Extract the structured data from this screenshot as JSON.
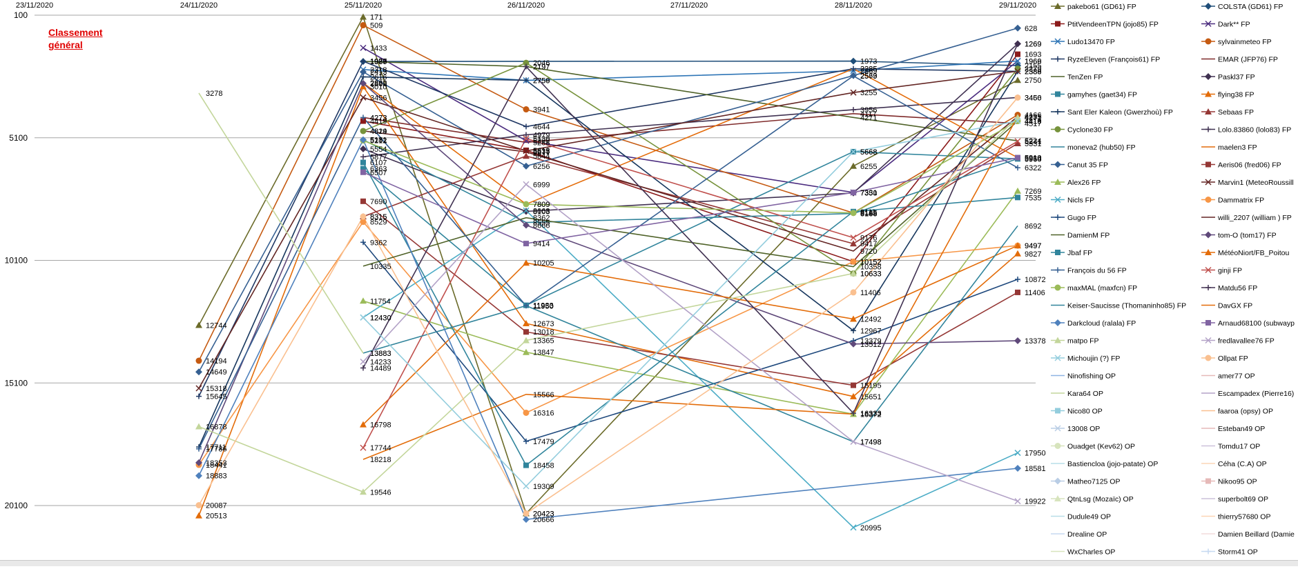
{
  "chart_data": {
    "type": "line",
    "title": "Classement général",
    "x": [
      "23/11/2020",
      "24/11/2020",
      "25/11/2020",
      "26/11/2020",
      "27/11/2020",
      "28/11/2020",
      "29/11/2020"
    ],
    "y_ticks": [
      100,
      5100,
      10100,
      15100,
      20100
    ],
    "ylim": [
      100,
      21000
    ],
    "y_reversed": true,
    "grid": true,
    "legend_position": "right",
    "series": [
      {
        "name": "pakebo61 (GD61) FP",
        "color": "#6b6b2a",
        "marker": "triangle",
        "values": [
          null,
          12744,
          171,
          20423,
          null,
          6255,
          2750
        ]
      },
      {
        "name": "COLSTA (GD61) FP",
        "color": "#1f4e79",
        "marker": "diamond",
        "values": [
          null,
          null,
          1989,
          null,
          null,
          1973,
          2155
        ]
      },
      {
        "name": "PtitVendeenTPN (jojo85) FP",
        "color": "#8b1a1a",
        "marker": "square",
        "values": [
          null,
          null,
          4419,
          5612,
          null,
          10152,
          1693
        ]
      },
      {
        "name": "Dark** FP",
        "color": "#4b2c7f",
        "marker": "x",
        "values": [
          null,
          null,
          1433,
          5222,
          null,
          7331,
          1966
        ]
      },
      {
        "name": "Ludo13470 FP",
        "color": "#2e75b6",
        "marker": "x",
        "values": [
          null,
          null,
          2318,
          2759,
          null,
          2369,
          1969
        ]
      },
      {
        "name": "sylvainmeteo FP",
        "color": "#c55a11",
        "marker": "circle",
        "values": [
          null,
          14194,
          509,
          3941,
          null,
          8165,
          4166
        ]
      },
      {
        "name": "RyzeEleven (François61) FP",
        "color": "#203864",
        "marker": "plus",
        "values": [
          null,
          15645,
          1977,
          4644,
          null,
          2285,
          2389
        ]
      },
      {
        "name": "EMAR (JFP76) FP",
        "color": "#7f2a2a",
        "marker": "none",
        "values": [
          null,
          null,
          4273,
          5288,
          null,
          4117,
          4517
        ]
      },
      {
        "name": "TenZen FP",
        "color": "#4f6228",
        "marker": "none",
        "values": [
          null,
          null,
          1986,
          2197,
          null,
          4271,
          5224
        ]
      },
      {
        "name": "Paskl37 FP",
        "color": "#403151",
        "marker": "diamond",
        "values": [
          null,
          null,
          5554,
          8103,
          null,
          7350,
          1269
        ]
      },
      {
        "name": "gamyhes (gaet34) FP",
        "color": "#31859c",
        "marker": "square",
        "values": [
          null,
          null,
          6363,
          11933,
          null,
          5668,
          5960
        ]
      },
      {
        "name": "flying38 FP",
        "color": "#e36c09",
        "marker": "triangle",
        "values": [
          null,
          20513,
          3010,
          12673,
          null,
          15651,
          9827
        ]
      },
      {
        "name": "Sant Eler Kaleon (Gwerzhoù) FP",
        "color": "#17375e",
        "marker": "plus",
        "values": [
          null,
          17711,
          2616,
          2756,
          null,
          12967,
          2388
        ]
      },
      {
        "name": "Sebaas FP",
        "color": "#953735",
        "marker": "triangle",
        "values": [
          null,
          null,
          8315,
          5844,
          null,
          9417,
          5331
        ]
      },
      {
        "name": "Cyclone30 FP",
        "color": "#77933c",
        "marker": "circle",
        "values": [
          null,
          null,
          4824,
          2046,
          null,
          10633,
          2279
        ]
      },
      {
        "name": "Lolo.83860 (lolo83) FP",
        "color": "#3f3151",
        "marker": "plus",
        "values": [
          null,
          null,
          5877,
          4979,
          null,
          3956,
          3456
        ]
      },
      {
        "name": "moneva2 (hub50) FP",
        "color": "#31849b",
        "marker": "none",
        "values": [
          null,
          null,
          5181,
          8555,
          null,
          8188,
          5954
        ]
      },
      {
        "name": "maelen3 FP",
        "color": "#e46c0a",
        "marker": "none",
        "values": [
          null,
          null,
          2862,
          7809,
          null,
          2285,
          5910
        ]
      },
      {
        "name": "Canut 35 FP",
        "color": "#366092",
        "marker": "diamond",
        "values": [
          null,
          14649,
          2413,
          6256,
          null,
          2563,
          628
        ]
      },
      {
        "name": "Aeris06 (fred06) FP",
        "color": "#953735",
        "marker": "square",
        "values": [
          null,
          null,
          7690,
          13018,
          null,
          15195,
          11406
        ]
      },
      {
        "name": "Alex26 FP",
        "color": "#9bbb59",
        "marker": "triangle",
        "values": [
          null,
          null,
          11754,
          13847,
          null,
          16372,
          7269
        ]
      },
      {
        "name": "Marvin1 (MeteoRoussillon) FP",
        "color": "#632523",
        "marker": "x",
        "values": [
          null,
          15318,
          3456,
          5635,
          null,
          3255,
          2386
        ]
      },
      {
        "name": "Nicls FP",
        "color": "#4bacc6",
        "marker": "x",
        "values": [
          null,
          null,
          12430,
          8068,
          null,
          20995,
          17950
        ]
      },
      {
        "name": "Dammatrix FP",
        "color": "#f79646",
        "marker": "circle",
        "values": [
          null,
          18441,
          8529,
          16316,
          null,
          10152,
          9497
        ]
      },
      {
        "name": "Gugo FP",
        "color": "#1f497d",
        "marker": "plus",
        "values": [
          null,
          null,
          9362,
          17479,
          null,
          13379,
          10872
        ]
      },
      {
        "name": "willi_2207 (william) FP",
        "color": "#632423",
        "marker": "none",
        "values": [
          null,
          null,
          4819,
          5677,
          null,
          9720,
          4235
        ]
      },
      {
        "name": "DamienM FP",
        "color": "#4f6228",
        "marker": "none",
        "values": [
          null,
          null,
          10335,
          8362,
          null,
          10358,
          4419
        ]
      },
      {
        "name": "tom-O (tom17) FP",
        "color": "#5f497a",
        "marker": "diamond",
        "values": [
          null,
          18353,
          2880,
          8666,
          null,
          13512,
          13378
        ]
      },
      {
        "name": "Jbaf FP",
        "color": "#31859c",
        "marker": "square",
        "values": [
          null,
          null,
          6107,
          18458,
          null,
          8111,
          7535
        ]
      },
      {
        "name": "MétéoNiort/FB_Poitou FP",
        "color": "#e36c09",
        "marker": "triangle",
        "values": [
          null,
          null,
          16798,
          10205,
          null,
          12492,
          9497
        ]
      },
      {
        "name": "François du 56 FP",
        "color": "#366092",
        "marker": "plus",
        "values": [
          null,
          17786,
          4273,
          11950,
          null,
          2579,
          6322
        ]
      },
      {
        "name": "ginji FP",
        "color": "#c0504d",
        "marker": "x",
        "values": [
          null,
          null,
          17744,
          5130,
          null,
          9176,
          5241
        ]
      },
      {
        "name": "maxMAL (maxfcn) FP",
        "color": "#9bbb59",
        "marker": "circle",
        "values": [
          null,
          null,
          5212,
          7809,
          null,
          8165,
          4419
        ]
      },
      {
        "name": "Matdu56 FP",
        "color": "#403151",
        "marker": "plus",
        "values": [
          null,
          null,
          14489,
          2197,
          null,
          16333,
          1269
        ]
      },
      {
        "name": "Keiser-Saucisse (Thomaninho85) FP",
        "color": "#31849b",
        "marker": "none",
        "values": [
          null,
          null,
          13883,
          11950,
          null,
          17498,
          8692
        ]
      },
      {
        "name": "DavGX FP",
        "color": "#e36c09",
        "marker": "none",
        "values": [
          null,
          null,
          18218,
          15566,
          null,
          16372,
          4235
        ]
      },
      {
        "name": "Darkcloud (ralala) FP",
        "color": "#4f81bd",
        "marker": "diamond",
        "values": [
          null,
          18883,
          5181,
          20666,
          null,
          null,
          18581
        ]
      },
      {
        "name": "Arnaud68100 (subwayp) FP",
        "color": "#8064a2",
        "marker": "square",
        "values": [
          null,
          null,
          6507,
          9414,
          null,
          7331,
          5910
        ]
      },
      {
        "name": "matpo FP",
        "color": "#c3d69b",
        "marker": "triangle",
        "values": [
          null,
          16878,
          19546,
          13365,
          null,
          10633,
          4271
        ]
      },
      {
        "name": "fredlavallee76 FP",
        "color": "#b3a2c7",
        "marker": "x",
        "values": [
          null,
          null,
          14233,
          6999,
          null,
          17498,
          19922
        ]
      },
      {
        "name": "Michoujin (?) FP",
        "color": "#93cddd",
        "marker": "x",
        "values": [
          null,
          null,
          12430,
          19309,
          null,
          5668,
          4416
        ]
      },
      {
        "name": "Ollpat FP",
        "color": "#fac090",
        "marker": "circle",
        "values": [
          null,
          20087,
          8315,
          20423,
          null,
          11406,
          3460
        ]
      },
      {
        "name": "Kara64 OP",
        "color": "#c3d69b",
        "marker": "none",
        "values": [
          null,
          3278,
          13883,
          null,
          null,
          null,
          null
        ]
      },
      {
        "name": "Nico80 OP",
        "color": "#93cddd",
        "marker": "square",
        "values": [
          null,
          null,
          null,
          null,
          null,
          null,
          null
        ]
      }
    ]
  },
  "legend": [
    {
      "name": "pakebo61 (GD61) FP",
      "color": "#6b6b2a",
      "marker": "triangle"
    },
    {
      "name": "COLSTA (GD61) FP",
      "color": "#1f4e79",
      "marker": "diamond"
    },
    {
      "name": "PtitVendeenTPN (jojo85) FP",
      "color": "#8b1a1a",
      "marker": "square"
    },
    {
      "name": "Dark** FP",
      "color": "#4b2c7f",
      "marker": "x"
    },
    {
      "name": "Ludo13470 FP",
      "color": "#2e75b6",
      "marker": "x"
    },
    {
      "name": "sylvainmeteo FP",
      "color": "#c55a11",
      "marker": "circle"
    },
    {
      "name": "RyzeEleven (François61) FP",
      "color": "#203864",
      "marker": "plus"
    },
    {
      "name": "EMAR (JFP76) FP",
      "color": "#7f2a2a",
      "marker": "none"
    },
    {
      "name": "TenZen FP",
      "color": "#4f6228",
      "marker": "none"
    },
    {
      "name": "Paskl37 FP",
      "color": "#403151",
      "marker": "diamond"
    },
    {
      "name": "gamyhes (gaet34) FP",
      "color": "#31859c",
      "marker": "square"
    },
    {
      "name": "flying38 FP",
      "color": "#e36c09",
      "marker": "triangle"
    },
    {
      "name": "Sant Eler Kaleon (Gwerzhoù) FP",
      "color": "#17375e",
      "marker": "plus"
    },
    {
      "name": "Sebaas FP",
      "color": "#953735",
      "marker": "triangle"
    },
    {
      "name": "Cyclone30 FP",
      "color": "#77933c",
      "marker": "circle"
    },
    {
      "name": "Lolo.83860 (lolo83) FP",
      "color": "#3f3151",
      "marker": "plus"
    },
    {
      "name": "moneva2 (hub50) FP",
      "color": "#31849b",
      "marker": "none"
    },
    {
      "name": "maelen3 FP",
      "color": "#e46c0a",
      "marker": "none"
    },
    {
      "name": "Canut 35 FP",
      "color": "#366092",
      "marker": "diamond"
    },
    {
      "name": "Aeris06 (fred06) FP",
      "color": "#953735",
      "marker": "square"
    },
    {
      "name": "Alex26 FP",
      "color": "#9bbb59",
      "marker": "triangle"
    },
    {
      "name": "Marvin1 (MeteoRoussill",
      "color": "#632523",
      "marker": "x"
    },
    {
      "name": "Nicls FP",
      "color": "#4bacc6",
      "marker": "x"
    },
    {
      "name": "Dammatrix FP",
      "color": "#f79646",
      "marker": "circle"
    },
    {
      "name": "Gugo FP",
      "color": "#1f497d",
      "marker": "plus"
    },
    {
      "name": "willi_2207 (william ) FP",
      "color": "#632423",
      "marker": "none"
    },
    {
      "name": "DamienM FP",
      "color": "#4f6228",
      "marker": "none"
    },
    {
      "name": "tom-O (tom17) FP",
      "color": "#5f497a",
      "marker": "diamond"
    },
    {
      "name": "Jbaf FP",
      "color": "#31859c",
      "marker": "square"
    },
    {
      "name": "MétéoNiort/FB_Poitou",
      "color": "#e36c09",
      "marker": "triangle"
    },
    {
      "name": "François du 56 FP",
      "color": "#366092",
      "marker": "plus"
    },
    {
      "name": "ginji FP",
      "color": "#c0504d",
      "marker": "x"
    },
    {
      "name": "maxMAL (maxfcn) FP",
      "color": "#9bbb59",
      "marker": "circle"
    },
    {
      "name": "Matdu56 FP",
      "color": "#403151",
      "marker": "plus"
    },
    {
      "name": "Keiser-Saucisse (Thomaninho85) FP",
      "color": "#31849b",
      "marker": "none"
    },
    {
      "name": "DavGX FP",
      "color": "#e36c09",
      "marker": "none"
    },
    {
      "name": "Darkcloud (ralala) FP",
      "color": "#4f81bd",
      "marker": "diamond"
    },
    {
      "name": "Arnaud68100 (subwayp",
      "color": "#8064a2",
      "marker": "square"
    },
    {
      "name": "matpo FP",
      "color": "#c3d69b",
      "marker": "triangle"
    },
    {
      "name": "fredlavallee76 FP",
      "color": "#b3a2c7",
      "marker": "x"
    },
    {
      "name": "Michoujin (?) FP",
      "color": "#93cddd",
      "marker": "x"
    },
    {
      "name": "Ollpat FP",
      "color": "#fac090",
      "marker": "circle"
    },
    {
      "name": "Ninofishing OP",
      "color": "#8eb4e3",
      "marker": "none"
    },
    {
      "name": "amer77 OP",
      "color": "#e6b9b8",
      "marker": "none"
    },
    {
      "name": "Kara64 OP",
      "color": "#c3d69b",
      "marker": "none"
    },
    {
      "name": "Escampadex (Pierre16)",
      "color": "#b3a2c7",
      "marker": "none"
    },
    {
      "name": "Nico80 OP",
      "color": "#93cddd",
      "marker": "square"
    },
    {
      "name": "faaroa (opsy) OP",
      "color": "#fac090",
      "marker": "none"
    },
    {
      "name": "13008 OP",
      "color": "#b9cde5",
      "marker": "x"
    },
    {
      "name": "Esteban49 OP",
      "color": "#e6b9b8",
      "marker": "none"
    },
    {
      "name": "Ouadget (Kev62) OP",
      "color": "#d7e4bd",
      "marker": "circle"
    },
    {
      "name": "Tomdu17 OP",
      "color": "#ccc1da",
      "marker": "none"
    },
    {
      "name": "Bastiencloa (jojo-patate) OP",
      "color": "#b7dee8",
      "marker": "none"
    },
    {
      "name": "Céha (C.A) OP",
      "color": "#fcd5b5",
      "marker": "none"
    },
    {
      "name": "Matheo7125 OP",
      "color": "#b9cde5",
      "marker": "diamond"
    },
    {
      "name": "Nikoo95 OP",
      "color": "#e6b9b8",
      "marker": "square"
    },
    {
      "name": "QtnLsg (Mozaïc) OP",
      "color": "#d7e4bd",
      "marker": "triangle"
    },
    {
      "name": "superbolt69 OP",
      "color": "#ccc1da",
      "marker": "none"
    },
    {
      "name": "Dudule49 OP",
      "color": "#b7dee8",
      "marker": "none"
    },
    {
      "name": "thierry57680 OP",
      "color": "#fcd5b5",
      "marker": "none"
    },
    {
      "name": "Drealine OP",
      "color": "#c6d9f1",
      "marker": "none"
    },
    {
      "name": "Damien Beillard (Damie",
      "color": "#f2dcdb",
      "marker": "none"
    },
    {
      "name": "WxCharles OP",
      "color": "#d8e4bc",
      "marker": "none"
    },
    {
      "name": "Storm41 OP",
      "color": "#c6d9f1",
      "marker": "plus"
    }
  ],
  "colors": {
    "grid": "#a6a6a6",
    "title": "#e00000",
    "axis_text": "#000000"
  }
}
